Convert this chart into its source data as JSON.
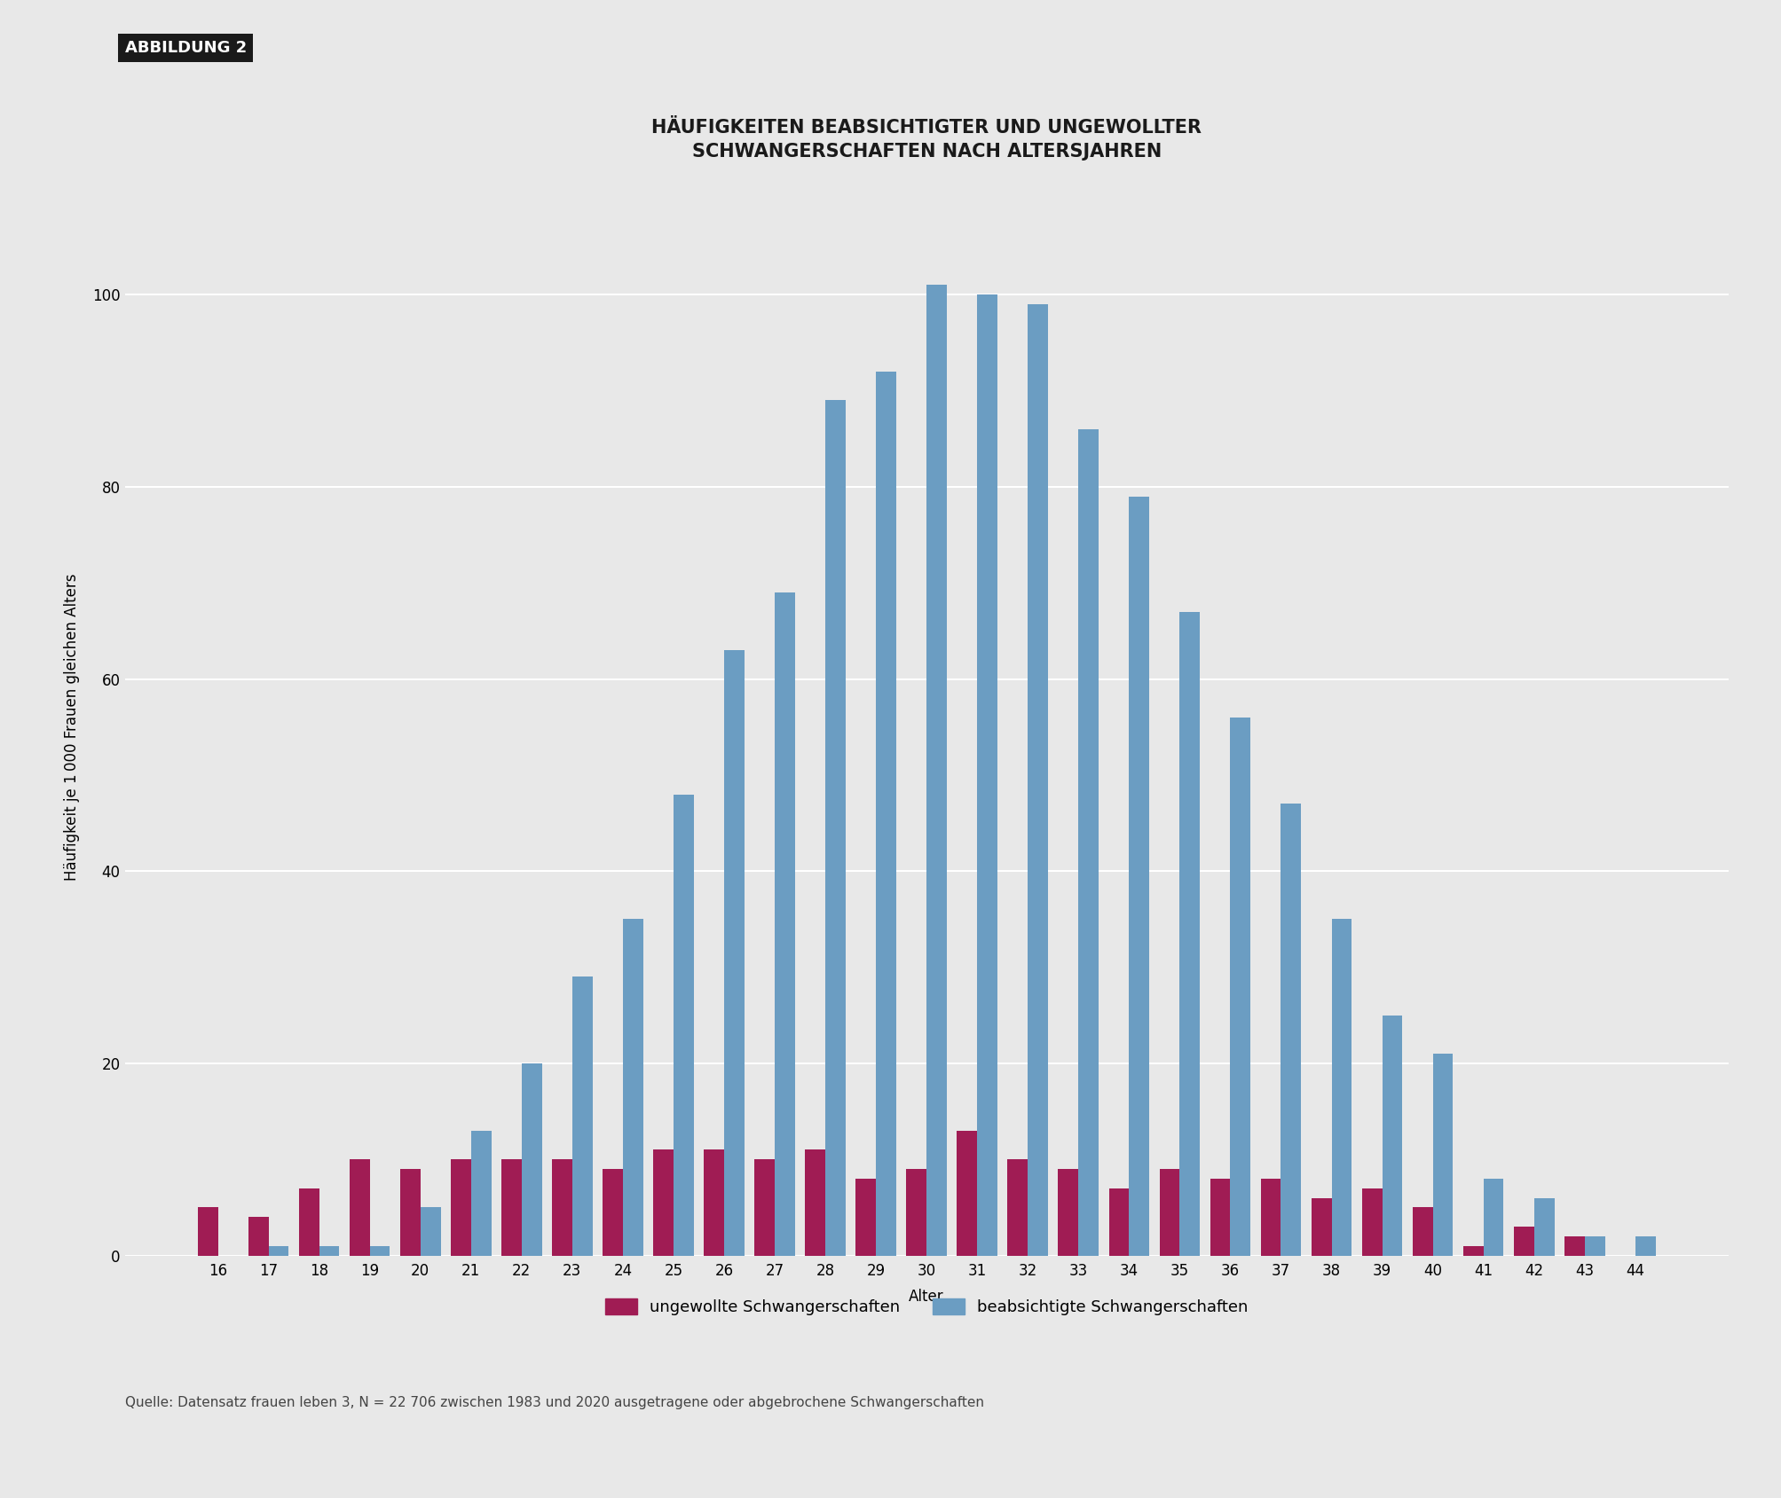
{
  "ages": [
    16,
    17,
    18,
    19,
    20,
    21,
    22,
    23,
    24,
    25,
    26,
    27,
    28,
    29,
    30,
    31,
    32,
    33,
    34,
    35,
    36,
    37,
    38,
    39,
    40,
    41,
    42,
    43,
    44
  ],
  "ungewollt": [
    5,
    4,
    7,
    10,
    9,
    10,
    10,
    10,
    9,
    11,
    11,
    10,
    11,
    8,
    9,
    13,
    10,
    9,
    7,
    9,
    8,
    8,
    6,
    7,
    5,
    1,
    3,
    2,
    0
  ],
  "beabsichtigt": [
    0,
    1,
    1,
    1,
    5,
    13,
    20,
    29,
    35,
    48,
    63,
    69,
    89,
    92,
    101,
    100,
    99,
    86,
    79,
    67,
    56,
    47,
    35,
    25,
    21,
    8,
    6,
    2,
    2
  ],
  "ungewollt_color": "#A01C54",
  "beabsichtigt_color": "#6B9DC2",
  "background_color": "#E8E8E8",
  "figure_background": "#E8E8E8",
  "title_line1": "HÄUFIGKEITEN BEABSICHTIGTER UND UNGEWOLLTER",
  "title_line2": "SCHWANGERSCHAFTEN NACH ALTERSJAHREN",
  "ylabel": "Häufigkeit je 1 000 Frauen gleichen Alters",
  "xlabel": "Alter",
  "legend_ungewollt": "ungewollte Schwangerschaften",
  "legend_beabsichtigt": "beabsichtigte Schwangerschaften",
  "source_text": "Quelle: Datensatz frauen leben 3, N = 22 706 zwischen 1983 und 2020 ausgetragene oder abgebrochene Schwangerschaften",
  "abbildung_label": "ABBILDUNG 2",
  "ylim": [
    0,
    110
  ],
  "yticks": [
    0,
    20,
    40,
    60,
    80,
    100
  ],
  "bar_width": 0.4,
  "title_fontsize": 15,
  "axis_label_fontsize": 12,
  "tick_fontsize": 12,
  "legend_fontsize": 13,
  "source_fontsize": 11,
  "abbildung_fontsize": 13
}
